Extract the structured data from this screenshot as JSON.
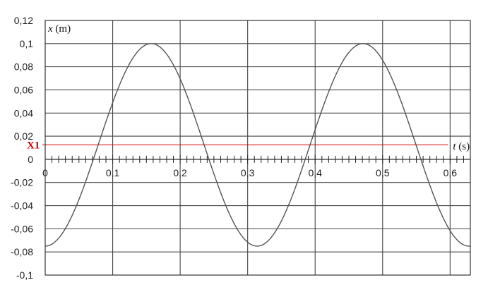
{
  "chart_data": {
    "type": "line",
    "title": "",
    "xlabel_var": "t",
    "xlabel_unit": " (s)",
    "ylabel_var": "x",
    "ylabel_unit": " (m)",
    "xlim": [
      0,
      0.63
    ],
    "ylim": [
      -0.1,
      0.12
    ],
    "x_ticks": [
      {
        "value": 0,
        "label": "0"
      },
      {
        "value": 0.1,
        "label": "0,1"
      },
      {
        "value": 0.2,
        "label": "0,2"
      },
      {
        "value": 0.3,
        "label": "0,3"
      },
      {
        "value": 0.4,
        "label": "0,4"
      },
      {
        "value": 0.5,
        "label": "0,5"
      },
      {
        "value": 0.6,
        "label": "0,6"
      }
    ],
    "y_ticks": [
      {
        "value": 0.12,
        "label": "0,12"
      },
      {
        "value": 0.1,
        "label": "0,1"
      },
      {
        "value": 0.08,
        "label": "0,08"
      },
      {
        "value": 0.06,
        "label": "0,06"
      },
      {
        "value": 0.04,
        "label": "0,04"
      },
      {
        "value": 0.02,
        "label": "0,02"
      },
      {
        "value": 0,
        "label": "0"
      },
      {
        "value": -0.02,
        "label": "-0,02"
      },
      {
        "value": -0.04,
        "label": "-0,04"
      },
      {
        "value": -0.06,
        "label": "-0,06"
      },
      {
        "value": -0.08,
        "label": "-0,08"
      },
      {
        "value": -0.1,
        "label": "-0,1"
      }
    ],
    "minor_x_step": 0.01,
    "grid": true,
    "series": [
      {
        "equation": "x = 0.0875*sin(2*pi*(t - 0.0785)/0.314) + 0.0125",
        "amplitude": 0.0875,
        "offset": 0.0125,
        "period": 0.314,
        "phase_shift": 0.0785,
        "t_range": [
          0,
          0.63
        ],
        "color": "#555555"
      }
    ],
    "annotations": [
      {
        "label": "X1",
        "y": 0.0125,
        "color": "#cc0000"
      }
    ]
  }
}
